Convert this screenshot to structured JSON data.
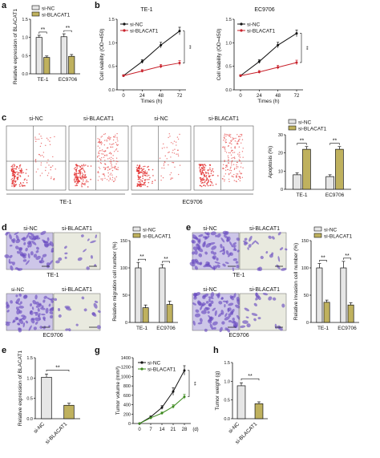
{
  "panels": {
    "a": {
      "letter": "a",
      "legend": [
        "si-NC",
        "si-BLACAT1"
      ],
      "ylabel": "Relative expression of BLACAT1",
      "yticks": [
        "0.0",
        "0.5",
        "1.0",
        "1.5"
      ],
      "sig": [
        "**",
        "**"
      ],
      "xticks": [
        "TE-1",
        "EC9706"
      ]
    },
    "b": {
      "letter": "b",
      "title1": "TE-1",
      "title2": "EC9706",
      "legend": [
        "si-NC",
        "si-BLACAT1"
      ],
      "ylabel": "Cell viability (OD=450)",
      "yticks": [
        "0.0",
        "0.5",
        "1.0",
        "1.5"
      ],
      "xticks": [
        "0",
        "24",
        "48",
        "72"
      ],
      "xlabel": "Times (h)",
      "sig": "**"
    },
    "c": {
      "letter": "c",
      "flow_titles": [
        "si-NC",
        "si-BLACAT1",
        "si-NC",
        "si-BLACAT1"
      ],
      "group_labels": [
        "TE-1",
        "EC9706"
      ],
      "legend": [
        "si-NC",
        "si-BLACAT1"
      ],
      "ylabel": "Apoptosis (%)",
      "yticks": [
        "0",
        "10",
        "20",
        "30"
      ],
      "sig": [
        "**",
        "**"
      ],
      "xticks": [
        "TE-1",
        "EC9706"
      ]
    },
    "d": {
      "letter": "d",
      "img_labels": [
        "si-NC",
        "si-BLACAT1"
      ],
      "group_labels": [
        "TE-1",
        "EC9706"
      ],
      "legend": [
        "si-NC",
        "si-BLACAT1"
      ],
      "ylabel": "Relative migration cell number (%)",
      "yticks": [
        "0",
        "50",
        "100",
        "150"
      ],
      "sig": [
        "**",
        "**"
      ],
      "xticks": [
        "TE-1",
        "EC9706"
      ]
    },
    "e_inv": {
      "letter": "e",
      "img_labels": [
        "si-NC",
        "si-BLACAT1"
      ],
      "group_labels": [
        "TE-1",
        "EC9706"
      ],
      "legend": [
        "si-NC",
        "si-BLACAT1"
      ],
      "ylabel": "Relative invasion cell number (%)",
      "yticks": [
        "0",
        "50",
        "100",
        "150"
      ],
      "sig": [
        "**",
        "**"
      ],
      "xticks": [
        "TE-1",
        "EC9706"
      ]
    },
    "e_tumor": {
      "letter": "e",
      "ylabel": "Relative expression of BLACAT1",
      "yticks": [
        "0.0",
        "0.5",
        "1.0",
        "1.5"
      ],
      "sig": "**",
      "xticks": [
        "si-NC",
        "si-BLACAT1"
      ]
    },
    "g": {
      "letter": "g",
      "legend": [
        "si-NC",
        "si-BLACAT1"
      ],
      "ylabel": "Tumor volume (mm³)",
      "yticks": [
        "0",
        "200",
        "400",
        "600",
        "800",
        "1000",
        "1200",
        "1400"
      ],
      "xticks": [
        "0",
        "7",
        "14",
        "21",
        "28"
      ],
      "xunit": "(d)",
      "sig": "**"
    },
    "h": {
      "letter": "h",
      "ylabel": "Tumor weight (g)",
      "yticks": [
        "0.0",
        "0.5",
        "1.0",
        "1.5"
      ],
      "sig": "**",
      "xticks": [
        "si-NC",
        "si-BLACAT1"
      ]
    }
  },
  "colors": {
    "nc_fill": "#e6e6e6",
    "kd_fill": "#bfb15e",
    "nc_line": "#111111",
    "kd_line_b": "#c8202a",
    "kd_line_g": "#3d8a1e",
    "flow_dot": "#e02020",
    "stain": "#6b4fc1"
  },
  "chart_data": [
    {
      "type": "bar",
      "panel": "a",
      "categories": [
        "TE-1",
        "EC9706"
      ],
      "ylabel": "Relative expression of BLACAT1",
      "ylim": [
        0,
        1.5
      ],
      "series": [
        {
          "name": "si-NC",
          "values": [
            1.0,
            1.02
          ],
          "errors": [
            0.06,
            0.08
          ]
        },
        {
          "name": "si-BLACAT1",
          "values": [
            0.45,
            0.48
          ],
          "errors": [
            0.04,
            0.05
          ]
        }
      ]
    },
    {
      "type": "line",
      "panel": "b-left",
      "title": "TE-1",
      "x": [
        0,
        24,
        48,
        72
      ],
      "xlabel": "Times (h)",
      "ylabel": "Cell viability (OD=450)",
      "ylim": [
        0,
        1.5
      ],
      "series": [
        {
          "name": "si-NC",
          "values": [
            0.3,
            0.6,
            0.95,
            1.25
          ],
          "errors": [
            0.02,
            0.04,
            0.06,
            0.08
          ]
        },
        {
          "name": "si-BLACAT1",
          "values": [
            0.3,
            0.4,
            0.5,
            0.57
          ],
          "errors": [
            0.02,
            0.03,
            0.04,
            0.05
          ]
        }
      ]
    },
    {
      "type": "line",
      "panel": "b-right",
      "title": "EC9706",
      "x": [
        0,
        24,
        48,
        72
      ],
      "xlabel": "Times (h)",
      "ylabel": "Cell viability (OD=450)",
      "ylim": [
        0,
        1.5
      ],
      "series": [
        {
          "name": "si-NC",
          "values": [
            0.3,
            0.6,
            0.95,
            1.2
          ],
          "errors": [
            0.02,
            0.04,
            0.06,
            0.07
          ]
        },
        {
          "name": "si-BLACAT1",
          "values": [
            0.3,
            0.38,
            0.48,
            0.58
          ],
          "errors": [
            0.02,
            0.03,
            0.04,
            0.05
          ]
        }
      ]
    },
    {
      "type": "bar",
      "panel": "c",
      "categories": [
        "TE-1",
        "EC9706"
      ],
      "ylabel": "Apoptosis (%)",
      "ylim": [
        0,
        30
      ],
      "series": [
        {
          "name": "si-NC",
          "values": [
            8,
            7
          ],
          "errors": [
            1,
            1
          ]
        },
        {
          "name": "si-BLACAT1",
          "values": [
            22,
            22
          ],
          "errors": [
            1.5,
            1.5
          ]
        }
      ]
    },
    {
      "type": "bar",
      "panel": "d",
      "categories": [
        "TE-1",
        "EC9706"
      ],
      "ylabel": "Relative migration cell number (%)",
      "ylim": [
        0,
        150
      ],
      "series": [
        {
          "name": "si-NC",
          "values": [
            100,
            100
          ],
          "errors": [
            10,
            6
          ]
        },
        {
          "name": "si-BLACAT1",
          "values": [
            27,
            33
          ],
          "errors": [
            5,
            6
          ]
        }
      ]
    },
    {
      "type": "bar",
      "panel": "e-invasion",
      "categories": [
        "TE-1",
        "EC9706"
      ],
      "ylabel": "Relative invasion cell number (%)",
      "ylim": [
        0,
        150
      ],
      "series": [
        {
          "name": "si-NC",
          "values": [
            100,
            100
          ],
          "errors": [
            8,
            12
          ]
        },
        {
          "name": "si-BLACAT1",
          "values": [
            37,
            32
          ],
          "errors": [
            4,
            4
          ]
        }
      ]
    },
    {
      "type": "bar",
      "panel": "e-tumor",
      "categories": [
        "si-NC",
        "si-BLACAT1"
      ],
      "ylabel": "Relative expression of BLACAT1",
      "ylim": [
        0,
        1.5
      ],
      "series": [
        {
          "values": [
            1.02,
            0.33
          ],
          "errors": [
            0.08,
            0.05
          ]
        }
      ]
    },
    {
      "type": "line",
      "panel": "g",
      "x": [
        0,
        7,
        14,
        21,
        28
      ],
      "ylabel": "Tumor volume (mm³)",
      "ylim": [
        0,
        1400
      ],
      "series": [
        {
          "name": "si-NC",
          "values": [
            0,
            140,
            340,
            680,
            1130
          ],
          "errors": [
            0,
            20,
            40,
            80,
            100
          ]
        },
        {
          "name": "si-BLACAT1",
          "values": [
            0,
            120,
            220,
            360,
            570
          ],
          "errors": [
            0,
            15,
            25,
            40,
            50
          ]
        }
      ]
    },
    {
      "type": "bar",
      "panel": "h",
      "categories": [
        "si-NC",
        "si-BLACAT1"
      ],
      "ylabel": "Tumor weight (g)",
      "ylim": [
        0,
        1.5
      ],
      "series": [
        {
          "values": [
            0.88,
            0.4
          ],
          "errors": [
            0.08,
            0.05
          ]
        }
      ]
    }
  ]
}
